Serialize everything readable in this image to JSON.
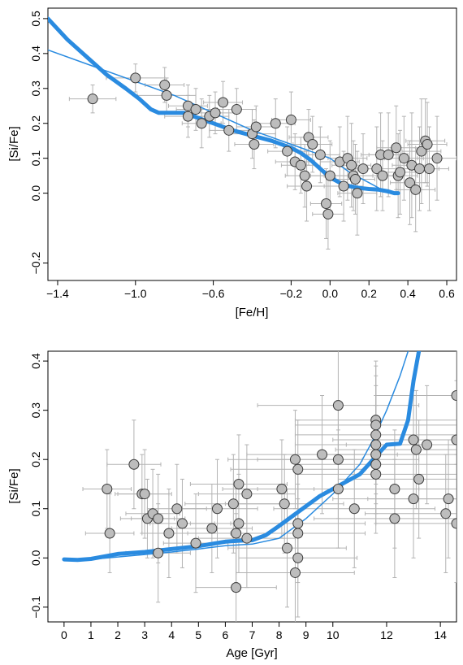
{
  "chart_data": [
    {
      "type": "scatter",
      "xlabel": "[Fe/H]",
      "ylabel": "[Si/Fe]",
      "xlim": [
        -1.45,
        0.65
      ],
      "ylim": [
        -0.25,
        0.53
      ],
      "x_ticks": [
        {
          "v": -1.4,
          "label": "−1.4"
        },
        {
          "v": -1.0,
          "label": "−1.0"
        },
        {
          "v": -0.6,
          "label": "−0.6"
        },
        {
          "v": -0.2,
          "label": "−0.2"
        },
        {
          "v": 0.0,
          "label": "0.0"
        },
        {
          "v": 0.2,
          "label": "0.2"
        },
        {
          "v": 0.4,
          "label": "0.4"
        },
        {
          "v": 0.6,
          "label": "0.6"
        }
      ],
      "y_ticks": [
        {
          "v": -0.2,
          "label": "−0.2"
        },
        {
          "v": 0.0,
          "label": "0.0"
        },
        {
          "v": 0.1,
          "label": "0.1"
        },
        {
          "v": 0.2,
          "label": "0.2"
        },
        {
          "v": 0.3,
          "label": "0.3"
        },
        {
          "v": 0.4,
          "label": "0.4"
        },
        {
          "v": 0.5,
          "label": "0.5"
        }
      ],
      "points": [
        {
          "x": -1.22,
          "y": 0.27,
          "ex": 0.12,
          "ey": 0.04
        },
        {
          "x": -1.0,
          "y": 0.33,
          "ex": 0.15,
          "ey": 0.04
        },
        {
          "x": -0.85,
          "y": 0.31,
          "ex": 0.1,
          "ey": 0.05
        },
        {
          "x": -0.84,
          "y": 0.28,
          "ex": 0.15,
          "ey": 0.05
        },
        {
          "x": -0.73,
          "y": 0.25,
          "ex": 0.1,
          "ey": 0.06
        },
        {
          "x": -0.73,
          "y": 0.22,
          "ex": 0.12,
          "ey": 0.06
        },
        {
          "x": -0.69,
          "y": 0.24,
          "ex": 0.1,
          "ey": 0.06
        },
        {
          "x": -0.66,
          "y": 0.2,
          "ex": 0.1,
          "ey": 0.07
        },
        {
          "x": -0.62,
          "y": 0.22,
          "ex": 0.1,
          "ey": 0.06
        },
        {
          "x": -0.59,
          "y": 0.23,
          "ex": 0.1,
          "ey": 0.06
        },
        {
          "x": -0.55,
          "y": 0.26,
          "ex": 0.1,
          "ey": 0.06
        },
        {
          "x": -0.52,
          "y": 0.18,
          "ex": 0.1,
          "ey": 0.06
        },
        {
          "x": -0.48,
          "y": 0.24,
          "ex": 0.1,
          "ey": 0.06
        },
        {
          "x": -0.4,
          "y": 0.17,
          "ex": 0.12,
          "ey": 0.07
        },
        {
          "x": -0.39,
          "y": 0.14,
          "ex": 0.1,
          "ey": 0.07
        },
        {
          "x": -0.38,
          "y": 0.19,
          "ex": 0.1,
          "ey": 0.06
        },
        {
          "x": -0.28,
          "y": 0.2,
          "ex": 0.1,
          "ey": 0.07
        },
        {
          "x": -0.22,
          "y": 0.12,
          "ex": 0.1,
          "ey": 0.07
        },
        {
          "x": -0.2,
          "y": 0.21,
          "ex": 0.1,
          "ey": 0.08
        },
        {
          "x": -0.18,
          "y": 0.09,
          "ex": 0.1,
          "ey": 0.08
        },
        {
          "x": -0.15,
          "y": 0.08,
          "ex": 0.1,
          "ey": 0.08
        },
        {
          "x": -0.13,
          "y": 0.05,
          "ex": 0.1,
          "ey": 0.09
        },
        {
          "x": -0.12,
          "y": 0.02,
          "ex": 0.1,
          "ey": 0.1
        },
        {
          "x": -0.11,
          "y": 0.16,
          "ex": 0.1,
          "ey": 0.08
        },
        {
          "x": -0.09,
          "y": 0.14,
          "ex": 0.1,
          "ey": 0.08
        },
        {
          "x": -0.05,
          "y": 0.11,
          "ex": 0.1,
          "ey": 0.08
        },
        {
          "x": -0.02,
          "y": -0.03,
          "ex": 0.08,
          "ey": 0.1
        },
        {
          "x": -0.01,
          "y": -0.06,
          "ex": 0.08,
          "ey": 0.1
        },
        {
          "x": 0.0,
          "y": 0.05,
          "ex": 0.1,
          "ey": 0.1
        },
        {
          "x": 0.05,
          "y": 0.09,
          "ex": 0.1,
          "ey": 0.1
        },
        {
          "x": 0.07,
          "y": 0.02,
          "ex": 0.1,
          "ey": 0.1
        },
        {
          "x": 0.09,
          "y": 0.1,
          "ex": 0.1,
          "ey": 0.12
        },
        {
          "x": 0.11,
          "y": 0.08,
          "ex": 0.1,
          "ey": 0.12
        },
        {
          "x": 0.12,
          "y": 0.05,
          "ex": 0.1,
          "ey": 0.1
        },
        {
          "x": 0.13,
          "y": 0.04,
          "ex": 0.1,
          "ey": 0.1
        },
        {
          "x": 0.14,
          "y": 0.0,
          "ex": 0.1,
          "ey": 0.12
        },
        {
          "x": 0.17,
          "y": 0.07,
          "ex": 0.1,
          "ey": 0.1
        },
        {
          "x": 0.24,
          "y": 0.07,
          "ex": 0.1,
          "ey": 0.12
        },
        {
          "x": 0.26,
          "y": 0.11,
          "ex": 0.1,
          "ey": 0.12
        },
        {
          "x": 0.27,
          "y": 0.05,
          "ex": 0.1,
          "ey": 0.1
        },
        {
          "x": 0.3,
          "y": 0.11,
          "ex": 0.1,
          "ey": 0.12
        },
        {
          "x": 0.34,
          "y": 0.13,
          "ex": 0.1,
          "ey": 0.12
        },
        {
          "x": 0.35,
          "y": 0.05,
          "ex": 0.1,
          "ey": 0.12
        },
        {
          "x": 0.36,
          "y": 0.06,
          "ex": 0.1,
          "ey": 0.12
        },
        {
          "x": 0.38,
          "y": 0.1,
          "ex": 0.1,
          "ey": 0.12
        },
        {
          "x": 0.41,
          "y": 0.03,
          "ex": 0.1,
          "ey": 0.12
        },
        {
          "x": 0.42,
          "y": 0.08,
          "ex": 0.1,
          "ey": 0.15
        },
        {
          "x": 0.44,
          "y": 0.01,
          "ex": 0.1,
          "ey": 0.12
        },
        {
          "x": 0.46,
          "y": 0.07,
          "ex": 0.1,
          "ey": 0.12
        },
        {
          "x": 0.47,
          "y": 0.12,
          "ex": 0.1,
          "ey": 0.15
        },
        {
          "x": 0.49,
          "y": 0.15,
          "ex": 0.1,
          "ey": 0.12
        },
        {
          "x": 0.5,
          "y": 0.14,
          "ex": 0.1,
          "ey": 0.12
        },
        {
          "x": 0.51,
          "y": 0.07,
          "ex": 0.1,
          "ey": 0.12
        },
        {
          "x": 0.55,
          "y": 0.1,
          "ex": 0.1,
          "ey": 0.12
        }
      ],
      "series": [
        {
          "style": "thick",
          "x": [
            -1.45,
            -1.35,
            -1.25,
            -1.15,
            -1.05,
            -0.98,
            -0.92,
            -0.88,
            -0.85,
            -0.8,
            -0.75,
            -0.7,
            -0.6,
            -0.5,
            -0.4,
            -0.3,
            -0.2,
            -0.15,
            -0.1,
            -0.05,
            0.0,
            0.05,
            0.1,
            0.15,
            0.2,
            0.25,
            0.3,
            0.33,
            0.35
          ],
          "y": [
            0.5,
            0.44,
            0.39,
            0.34,
            0.3,
            0.27,
            0.24,
            0.23,
            0.23,
            0.23,
            0.23,
            0.22,
            0.2,
            0.18,
            0.165,
            0.15,
            0.13,
            0.115,
            0.095,
            0.07,
            0.045,
            0.03,
            0.02,
            0.015,
            0.012,
            0.01,
            0.005,
            0.0,
            0.0
          ]
        },
        {
          "style": "thin",
          "x": [
            -1.45,
            -1.2,
            -1.0,
            -0.8,
            -0.6,
            -0.4,
            -0.2,
            0.0,
            0.1,
            0.2,
            0.3
          ],
          "y": [
            0.41,
            0.36,
            0.32,
            0.28,
            0.23,
            0.18,
            0.14,
            0.1,
            0.06,
            0.03,
            0.0
          ]
        }
      ]
    },
    {
      "type": "scatter",
      "xlabel": "Age [Gyr]",
      "ylabel": "[Si/Fe]",
      "xlim": [
        -0.6,
        14.6
      ],
      "ylim": [
        -0.13,
        0.42
      ],
      "x_ticks": [
        {
          "v": 0,
          "label": "0"
        },
        {
          "v": 1,
          "label": "1"
        },
        {
          "v": 2,
          "label": "2"
        },
        {
          "v": 3,
          "label": "3"
        },
        {
          "v": 4,
          "label": "4"
        },
        {
          "v": 5,
          "label": "5"
        },
        {
          "v": 6,
          "label": "6"
        },
        {
          "v": 7,
          "label": "7"
        },
        {
          "v": 8,
          "label": "8"
        },
        {
          "v": 9,
          "label": "9"
        },
        {
          "v": 10,
          "label": "10"
        },
        {
          "v": 12,
          "label": "12"
        },
        {
          "v": 14,
          "label": "14"
        }
      ],
      "y_ticks": [
        {
          "v": -0.1,
          "label": "−0.1"
        },
        {
          "v": 0.0,
          "label": "0.0"
        },
        {
          "v": 0.1,
          "label": "0.1"
        },
        {
          "v": 0.2,
          "label": "0.2"
        },
        {
          "v": 0.3,
          "label": "0.3"
        },
        {
          "v": 0.4,
          "label": "0.4"
        }
      ],
      "points": [
        {
          "x": 1.6,
          "y": 0.14,
          "ex": 0.9,
          "ey": 0.08
        },
        {
          "x": 1.7,
          "y": 0.05,
          "ex": 0.9,
          "ey": 0.08
        },
        {
          "x": 2.6,
          "y": 0.19,
          "ex": 1.0,
          "ey": 0.09
        },
        {
          "x": 2.9,
          "y": 0.13,
          "ex": 1.0,
          "ey": 0.08
        },
        {
          "x": 3.0,
          "y": 0.13,
          "ex": 1.0,
          "ey": 0.09
        },
        {
          "x": 3.1,
          "y": 0.08,
          "ex": 1.0,
          "ey": 0.08
        },
        {
          "x": 3.3,
          "y": 0.09,
          "ex": 1.0,
          "ey": 0.09
        },
        {
          "x": 3.5,
          "y": 0.08,
          "ex": 1.0,
          "ey": 0.09
        },
        {
          "x": 3.5,
          "y": 0.01,
          "ex": 1.2,
          "ey": 0.1
        },
        {
          "x": 3.9,
          "y": 0.05,
          "ex": 1.0,
          "ey": 0.09
        },
        {
          "x": 4.2,
          "y": 0.1,
          "ex": 1.1,
          "ey": 0.09
        },
        {
          "x": 4.4,
          "y": 0.07,
          "ex": 1.2,
          "ey": 0.09
        },
        {
          "x": 4.9,
          "y": 0.03,
          "ex": 1.2,
          "ey": 0.1
        },
        {
          "x": 5.5,
          "y": 0.06,
          "ex": 1.5,
          "ey": 0.09
        },
        {
          "x": 5.7,
          "y": 0.1,
          "ex": 1.5,
          "ey": 0.1
        },
        {
          "x": 6.3,
          "y": 0.11,
          "ex": 1.8,
          "ey": 0.1
        },
        {
          "x": 6.4,
          "y": 0.05,
          "ex": 1.8,
          "ey": 0.1
        },
        {
          "x": 6.4,
          "y": -0.06,
          "ex": 1.5,
          "ey": 0.15
        },
        {
          "x": 6.5,
          "y": 0.15,
          "ex": 1.8,
          "ey": 0.1
        },
        {
          "x": 6.5,
          "y": 0.07,
          "ex": 1.8,
          "ey": 0.1
        },
        {
          "x": 6.8,
          "y": 0.13,
          "ex": 1.8,
          "ey": 0.1
        },
        {
          "x": 6.8,
          "y": 0.04,
          "ex": 1.8,
          "ey": 0.1
        },
        {
          "x": 8.1,
          "y": 0.14,
          "ex": 2.2,
          "ey": 0.1
        },
        {
          "x": 8.2,
          "y": 0.11,
          "ex": 2.2,
          "ey": 0.1
        },
        {
          "x": 8.3,
          "y": 0.02,
          "ex": 2.2,
          "ey": 0.12
        },
        {
          "x": 8.6,
          "y": 0.2,
          "ex": 2.5,
          "ey": 0.1
        },
        {
          "x": 8.6,
          "y": -0.03,
          "ex": 2.2,
          "ey": 0.12
        },
        {
          "x": 8.7,
          "y": 0.18,
          "ex": 2.5,
          "ey": 0.1
        },
        {
          "x": 8.7,
          "y": 0.07,
          "ex": 2.5,
          "ey": 0.1
        },
        {
          "x": 8.7,
          "y": 0.05,
          "ex": 2.5,
          "ey": 0.1
        },
        {
          "x": 8.7,
          "y": 0.0,
          "ex": 2.2,
          "ey": 0.12
        },
        {
          "x": 9.6,
          "y": 0.21,
          "ex": 2.8,
          "ey": 0.12
        },
        {
          "x": 10.2,
          "y": 0.31,
          "ex": 3.0,
          "ey": 0.12
        },
        {
          "x": 10.2,
          "y": 0.2,
          "ex": 3.0,
          "ey": 0.12
        },
        {
          "x": 10.2,
          "y": 0.14,
          "ex": 3.0,
          "ey": 0.12
        },
        {
          "x": 10.8,
          "y": 0.1,
          "ex": 3.0,
          "ey": 0.12
        },
        {
          "x": 11.6,
          "y": 0.28,
          "ex": 3.0,
          "ey": 0.12
        },
        {
          "x": 11.6,
          "y": 0.27,
          "ex": 3.0,
          "ey": 0.12
        },
        {
          "x": 11.6,
          "y": 0.25,
          "ex": 3.0,
          "ey": 0.12
        },
        {
          "x": 11.6,
          "y": 0.23,
          "ex": 3.0,
          "ey": 0.12
        },
        {
          "x": 11.6,
          "y": 0.21,
          "ex": 3.0,
          "ey": 0.12
        },
        {
          "x": 11.6,
          "y": 0.19,
          "ex": 3.0,
          "ey": 0.12
        },
        {
          "x": 11.6,
          "y": 0.17,
          "ex": 3.0,
          "ey": 0.12
        },
        {
          "x": 12.3,
          "y": 0.14,
          "ex": 3.0,
          "ey": 0.12
        },
        {
          "x": 12.3,
          "y": 0.08,
          "ex": 3.0,
          "ey": 0.12
        },
        {
          "x": 13.0,
          "y": 0.24,
          "ex": 3.0,
          "ey": 0.12
        },
        {
          "x": 13.1,
          "y": 0.22,
          "ex": 3.0,
          "ey": 0.12
        },
        {
          "x": 13.0,
          "y": 0.12,
          "ex": 3.0,
          "ey": 0.12
        },
        {
          "x": 13.2,
          "y": 0.16,
          "ex": 3.0,
          "ey": 0.12
        },
        {
          "x": 13.5,
          "y": 0.23,
          "ex": 3.0,
          "ey": 0.12
        },
        {
          "x": 14.2,
          "y": 0.09,
          "ex": 3.0,
          "ey": 0.12
        },
        {
          "x": 14.3,
          "y": 0.12,
          "ex": 3.0,
          "ey": 0.12
        },
        {
          "x": 14.6,
          "y": 0.33,
          "ex": 3.0,
          "ey": 0.12
        },
        {
          "x": 14.6,
          "y": 0.24,
          "ex": 3.0,
          "ey": 0.12
        },
        {
          "x": 14.6,
          "y": 0.07,
          "ex": 3.0,
          "ey": 0.12
        }
      ],
      "series": [
        {
          "style": "thick",
          "x": [
            0,
            0.5,
            1.0,
            1.5,
            2.0,
            3.0,
            4.0,
            5.0,
            6.0,
            6.5,
            7.0,
            7.5,
            8.0,
            8.5,
            9.0,
            9.5,
            10.0,
            10.5,
            11.0,
            11.5,
            12.0,
            12.5,
            12.8,
            13.0,
            13.2
          ],
          "y": [
            -0.003,
            -0.004,
            -0.002,
            0.003,
            0.008,
            0.012,
            0.018,
            0.024,
            0.033,
            0.035,
            0.036,
            0.046,
            0.065,
            0.085,
            0.105,
            0.125,
            0.14,
            0.155,
            0.17,
            0.2,
            0.23,
            0.232,
            0.28,
            0.36,
            0.42
          ]
        },
        {
          "style": "thin",
          "x": [
            0,
            1,
            2,
            3,
            4,
            5,
            6,
            7,
            8,
            9,
            10,
            11,
            11.5,
            12.0,
            12.5,
            12.8
          ],
          "y": [
            -0.003,
            -0.003,
            0.002,
            0.007,
            0.012,
            0.018,
            0.025,
            0.028,
            0.04,
            0.08,
            0.13,
            0.19,
            0.24,
            0.3,
            0.37,
            0.42
          ]
        }
      ]
    }
  ]
}
